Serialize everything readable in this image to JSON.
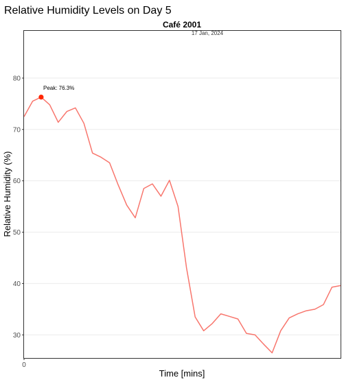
{
  "chart_data": {
    "type": "line",
    "title": "Relative Humidity Levels on Day 5",
    "subtitle": "Café 2001",
    "date_label": "17 Jan, 2024",
    "xlabel": "Time [mins]",
    "ylabel": "Relative Humidity (%)",
    "x_ticks": [
      0
    ],
    "y_ticks": [
      30,
      40,
      50,
      60,
      70,
      80
    ],
    "ylim": [
      25.5,
      89.2
    ],
    "grid": true,
    "line_color": "#f8766d",
    "peak_color": "#ff2600",
    "annotation": "Peak: 76.3%",
    "peak": {
      "x": 2,
      "y": 76.3
    },
    "x": [
      0,
      1,
      2,
      3,
      4,
      5,
      6,
      7,
      8,
      9,
      10,
      11,
      12,
      13,
      14,
      15,
      16,
      17,
      18,
      19,
      20,
      21,
      22,
      23,
      24,
      25,
      26,
      27,
      28,
      29,
      30,
      31,
      32,
      33,
      34,
      35,
      36,
      37
    ],
    "values": [
      72.5,
      75.5,
      76.3,
      74.8,
      71.4,
      73.5,
      74.2,
      71.2,
      65.4,
      64.6,
      63.5,
      59.2,
      55.3,
      52.8,
      58.5,
      59.4,
      57.0,
      60.1,
      55.0,
      43.0,
      33.5,
      30.8,
      32.2,
      34.1,
      33.6,
      33.1,
      30.3,
      30.0,
      28.2,
      26.5,
      30.8,
      33.3,
      34.1,
      34.7,
      35.0,
      35.9,
      39.3,
      39.6
    ]
  }
}
